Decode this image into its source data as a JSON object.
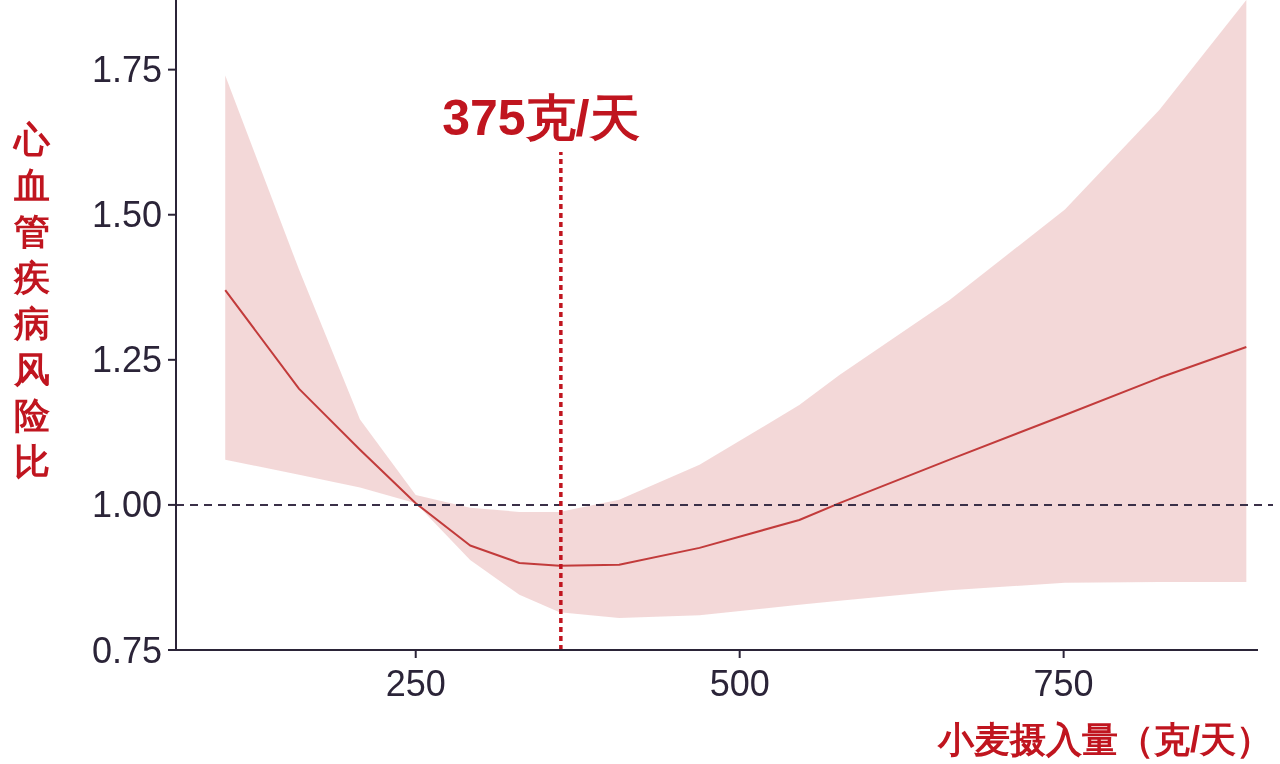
{
  "chart_data": {
    "type": "line",
    "xlabel": "小麦摄入量（克/天）",
    "ylabel": "心血管疾病风险比",
    "xlim": [
      65,
      900
    ],
    "ylim": [
      0.75,
      1.87
    ],
    "xticks": [
      250,
      500,
      750
    ],
    "yticks": [
      {
        "value": 0.75,
        "label": "0.75"
      },
      {
        "value": 1,
        "label": "1.00"
      },
      {
        "value": 1.25,
        "label": "1.25"
      },
      {
        "value": 1.5,
        "label": "1.50"
      },
      {
        "value": 1.75,
        "label": "1.75"
      }
    ],
    "grid": false,
    "series": [
      {
        "color": "#c23b3b",
        "x": [
          103,
          160,
          207,
          250,
          292,
          330,
          361,
          407,
          469,
          546,
          577,
          662,
          751,
          824,
          891
        ],
        "values": [
          1.37,
          1.2,
          1.095,
          1.003,
          0.93,
          0.9,
          0.895,
          0.897,
          0.926,
          0.974,
          1.003,
          1.078,
          1.155,
          1.219,
          1.272
        ],
        "lower": [
          1.078,
          1.052,
          1.03,
          1.003,
          0.905,
          0.845,
          0.815,
          0.805,
          0.81,
          0.828,
          0.835,
          0.853,
          0.866,
          0.867,
          0.867
        ],
        "upper": [
          1.74,
          1.405,
          1.147,
          1.017,
          0.995,
          0.988,
          0.988,
          1.009,
          1.069,
          1.172,
          1.224,
          1.353,
          1.509,
          1.681,
          1.87
        ]
      }
    ],
    "ref_lines": [
      {
        "axis": "y",
        "value": 1,
        "color": "#3a3048",
        "line_style": "dashed"
      },
      {
        "axis": "x",
        "value": 362,
        "label": "375克/天",
        "color": "#c0151f",
        "line_style": "dotted"
      }
    ]
  }
}
